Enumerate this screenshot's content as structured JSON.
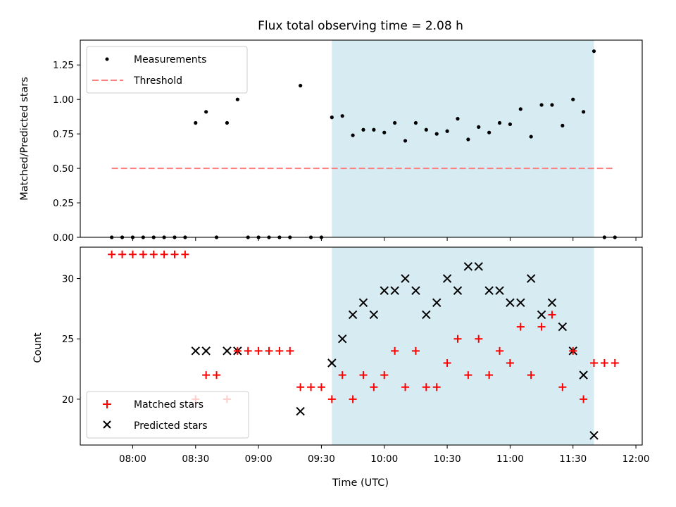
{
  "chart_data": {
    "title": "Flux total observing time = 2.08 h",
    "xlabel": "Time (UTC)",
    "x_ticks": [
      "08:00",
      "08:30",
      "09:00",
      "09:30",
      "10:00",
      "10:30",
      "11:00",
      "11:30",
      "12:00"
    ],
    "highlight_span": {
      "start": "09:35",
      "end": "11:40",
      "color": "#add8e6"
    },
    "colors": {
      "measurements": "#000000",
      "threshold": "#ff7f7f",
      "matched": "#ff0000",
      "predicted": "#000000",
      "span": "#add8e6"
    },
    "charts": [
      {
        "type": "scatter",
        "ylabel": "Matched/Predicted stars",
        "ylim": [
          0,
          1.43
        ],
        "y_ticks": [
          "0.00",
          "0.25",
          "0.50",
          "0.75",
          "1.00",
          "1.25"
        ],
        "legend": {
          "placement": "top-left",
          "entries": [
            "Measurements",
            "Threshold"
          ]
        },
        "series": [
          {
            "name": "Measurements",
            "marker": "dot",
            "points": [
              [
                "07:50",
                0
              ],
              [
                "07:55",
                0
              ],
              [
                "08:00",
                0
              ],
              [
                "08:05",
                0
              ],
              [
                "08:10",
                0
              ],
              [
                "08:15",
                0
              ],
              [
                "08:20",
                0
              ],
              [
                "08:25",
                0
              ],
              [
                "08:30",
                0.83
              ],
              [
                "08:35",
                0.91
              ],
              [
                "08:40",
                0
              ],
              [
                "08:45",
                0.83
              ],
              [
                "08:50",
                1.0
              ],
              [
                "08:55",
                0
              ],
              [
                "09:00",
                0
              ],
              [
                "09:05",
                0
              ],
              [
                "09:10",
                0
              ],
              [
                "09:15",
                0
              ],
              [
                "09:20",
                1.1
              ],
              [
                "09:25",
                0
              ],
              [
                "09:30",
                0
              ],
              [
                "09:35",
                0.87
              ],
              [
                "09:40",
                0.88
              ],
              [
                "09:45",
                0.74
              ],
              [
                "09:50",
                0.78
              ],
              [
                "09:55",
                0.78
              ],
              [
                "10:00",
                0.76
              ],
              [
                "10:05",
                0.83
              ],
              [
                "10:10",
                0.7
              ],
              [
                "10:15",
                0.83
              ],
              [
                "10:20",
                0.78
              ],
              [
                "10:25",
                0.75
              ],
              [
                "10:30",
                0.77
              ],
              [
                "10:35",
                0.86
              ],
              [
                "10:40",
                0.71
              ],
              [
                "10:45",
                0.8
              ],
              [
                "10:50",
                0.76
              ],
              [
                "10:55",
                0.83
              ],
              [
                "11:00",
                0.82
              ],
              [
                "11:05",
                0.93
              ],
              [
                "11:10",
                0.73
              ],
              [
                "11:15",
                0.96
              ],
              [
                "11:20",
                0.96
              ],
              [
                "11:25",
                0.81
              ],
              [
                "11:30",
                1.0
              ],
              [
                "11:35",
                0.91
              ],
              [
                "11:40",
                1.35
              ],
              [
                "11:45",
                0
              ],
              [
                "11:50",
                0
              ]
            ]
          },
          {
            "name": "Threshold",
            "style": "dashed",
            "points": [
              [
                "07:50",
                0.5
              ],
              [
                "11:50",
                0.5
              ]
            ]
          }
        ]
      },
      {
        "type": "scatter",
        "ylabel": "Count",
        "ylim": [
          16.2,
          32.6
        ],
        "y_ticks": [
          "20",
          "25",
          "30"
        ],
        "legend": {
          "placement": "bottom-left",
          "entries": [
            "Matched stars",
            "Predicted stars"
          ]
        },
        "series": [
          {
            "name": "Matched stars",
            "marker": "plus",
            "points": [
              [
                "07:50",
                32
              ],
              [
                "07:55",
                32
              ],
              [
                "08:00",
                32
              ],
              [
                "08:05",
                32
              ],
              [
                "08:10",
                32
              ],
              [
                "08:15",
                32
              ],
              [
                "08:20",
                32
              ],
              [
                "08:25",
                32
              ],
              [
                "08:30",
                20
              ],
              [
                "08:35",
                22
              ],
              [
                "08:40",
                22
              ],
              [
                "08:45",
                20
              ],
              [
                "08:50",
                24
              ],
              [
                "08:55",
                24
              ],
              [
                "09:00",
                24
              ],
              [
                "09:05",
                24
              ],
              [
                "09:10",
                24
              ],
              [
                "09:15",
                24
              ],
              [
                "09:20",
                21
              ],
              [
                "09:25",
                21
              ],
              [
                "09:30",
                21
              ],
              [
                "09:35",
                20
              ],
              [
                "09:40",
                22
              ],
              [
                "09:45",
                20
              ],
              [
                "09:50",
                22
              ],
              [
                "09:55",
                21
              ],
              [
                "10:00",
                22
              ],
              [
                "10:05",
                24
              ],
              [
                "10:10",
                21
              ],
              [
                "10:15",
                24
              ],
              [
                "10:20",
                21
              ],
              [
                "10:25",
                21
              ],
              [
                "10:30",
                23
              ],
              [
                "10:35",
                25
              ],
              [
                "10:40",
                22
              ],
              [
                "10:45",
                25
              ],
              [
                "10:50",
                22
              ],
              [
                "10:55",
                24
              ],
              [
                "11:00",
                23
              ],
              [
                "11:05",
                26
              ],
              [
                "11:10",
                22
              ],
              [
                "11:15",
                26
              ],
              [
                "11:20",
                27
              ],
              [
                "11:25",
                21
              ],
              [
                "11:30",
                24
              ],
              [
                "11:35",
                20
              ],
              [
                "11:40",
                23
              ],
              [
                "11:45",
                23
              ],
              [
                "11:50",
                23
              ]
            ]
          },
          {
            "name": "Predicted stars",
            "marker": "x",
            "points": [
              [
                "08:30",
                24
              ],
              [
                "08:35",
                24
              ],
              [
                "08:45",
                24
              ],
              [
                "08:50",
                24
              ],
              [
                "09:20",
                19
              ],
              [
                "09:35",
                23
              ],
              [
                "09:40",
                25
              ],
              [
                "09:45",
                27
              ],
              [
                "09:50",
                28
              ],
              [
                "09:55",
                27
              ],
              [
                "10:00",
                29
              ],
              [
                "10:05",
                29
              ],
              [
                "10:10",
                30
              ],
              [
                "10:15",
                29
              ],
              [
                "10:20",
                27
              ],
              [
                "10:25",
                28
              ],
              [
                "10:30",
                30
              ],
              [
                "10:35",
                29
              ],
              [
                "10:40",
                31
              ],
              [
                "10:45",
                31
              ],
              [
                "10:50",
                29
              ],
              [
                "10:55",
                29
              ],
              [
                "11:00",
                28
              ],
              [
                "11:05",
                28
              ],
              [
                "11:10",
                30
              ],
              [
                "11:15",
                27
              ],
              [
                "11:20",
                28
              ],
              [
                "11:25",
                26
              ],
              [
                "11:30",
                24
              ],
              [
                "11:35",
                22
              ],
              [
                "11:40",
                17
              ]
            ]
          }
        ]
      }
    ]
  }
}
